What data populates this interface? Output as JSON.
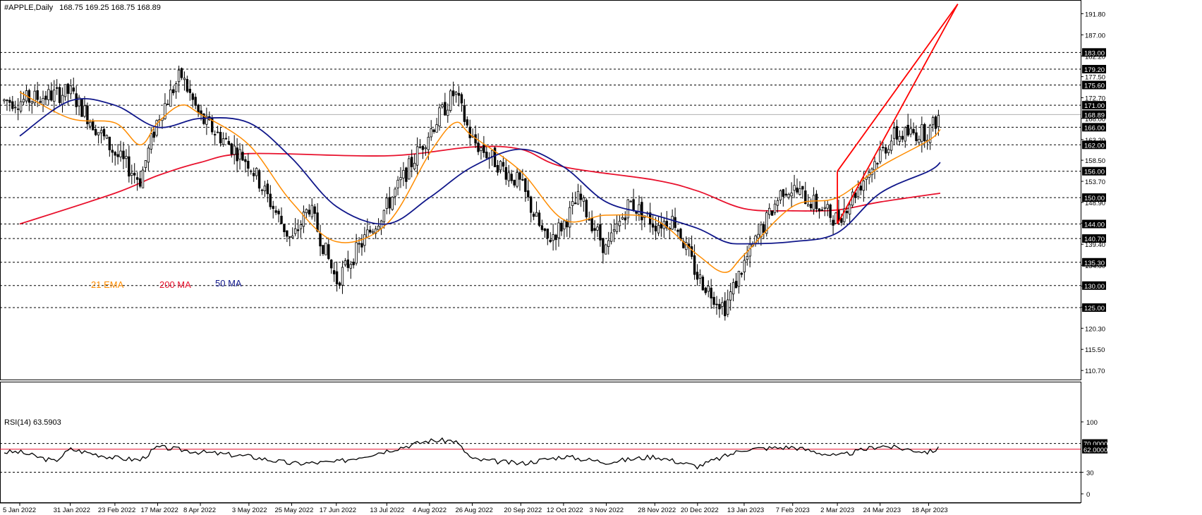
{
  "header": {
    "symbol_label": "#APPLE,Daily",
    "ohlc": "168.75 169.25 168.75 168.89"
  },
  "legend": {
    "ema21": "21 EMA",
    "ma200": "200 MA",
    "ma50": "50 MA"
  },
  "rsi_panel": {
    "title": "RSI(14) 63.5903",
    "ticks": [
      "100",
      "70.0000",
      "62.0000",
      "30",
      "0"
    ]
  },
  "colors": {
    "ema21": "#ff8c00",
    "ma200": "#e8112d",
    "ma50": "#10178a",
    "channel": "#ff0000",
    "candle": "#000000",
    "label_bg": "#000000",
    "label_fg": "#ffffff"
  },
  "chart_data": [
    {
      "type": "candlestick",
      "title": "#APPLE,Daily",
      "ylim": [
        108.8,
        194.6
      ],
      "price_ticks": [
        "191.80",
        "187.00",
        "182.20",
        "177.50",
        "172.70",
        "168.00",
        "163.20",
        "158.50",
        "153.70",
        "148.90",
        "144.20",
        "139.40",
        "134.60",
        "129.90",
        "125.10",
        "120.30",
        "115.50",
        "110.70"
      ],
      "price_levels": [
        "183.00",
        "179.20",
        "175.60",
        "171.00",
        "166.00",
        "162.00",
        "156.00",
        "150.00",
        "144.00",
        "140.70",
        "135.30",
        "130.00",
        "125.00"
      ],
      "current_price": "168.89",
      "x_tick_labels": [
        "5 Jan 2022",
        "31 Jan 2022",
        "23 Feb 2022",
        "17 Mar 2022",
        "8 Apr 2022",
        "3 May 2022",
        "25 May 2022",
        "17 Jun 2022",
        "13 Jul 2022",
        "4 Aug 2022",
        "26 Aug 2022",
        "20 Sep 2022",
        "12 Oct 2022",
        "3 Nov 2022",
        "28 Nov 2022",
        "20 Dec 2022",
        "13 Jan 2023",
        "7 Feb 2023",
        "2 Mar 2023",
        "24 Mar 2023",
        "18 Apr 2023"
      ],
      "price_path": [
        [
          "5 Jan 2022",
          172
        ],
        [
          "31 Jan 2022",
          174
        ],
        [
          "23 Feb 2022",
          160
        ],
        [
          "8 Mar 2022",
          154
        ],
        [
          "17 Mar 2022",
          168
        ],
        [
          "29 Mar 2022",
          178
        ],
        [
          "8 Apr 2022",
          168
        ],
        [
          "3 May 2022",
          158
        ],
        [
          "25 May 2022",
          140
        ],
        [
          "3 Jun 2022",
          148
        ],
        [
          "17 Jun 2022",
          131
        ],
        [
          "13 Jul 2022",
          148
        ],
        [
          "4 Aug 2022",
          165
        ],
        [
          "17 Aug 2022",
          174
        ],
        [
          "26 Aug 2022",
          163
        ],
        [
          "20 Sep 2022",
          153
        ],
        [
          "3 Oct 2022",
          140
        ],
        [
          "12 Oct 2022",
          144
        ],
        [
          "20 Oct 2022",
          150
        ],
        [
          "3 Nov 2022",
          138
        ],
        [
          "15 Nov 2022",
          149
        ],
        [
          "28 Nov 2022",
          144
        ],
        [
          "8 Dec 2022",
          145
        ],
        [
          "20 Dec 2022",
          132
        ],
        [
          "3 Jan 2023",
          125
        ],
        [
          "13 Jan 2023",
          135
        ],
        [
          "2 Feb 2023",
          152
        ],
        [
          "7 Feb 2023",
          152
        ],
        [
          "2 Mar 2023",
          145
        ],
        [
          "24 Mar 2023",
          160
        ],
        [
          "31 Mar 2023",
          164
        ],
        [
          "18 Apr 2023",
          165
        ],
        [
          "24 Apr 2023",
          168.9
        ]
      ],
      "series": [
        {
          "name": "21 EMA",
          "values": [
            [
              "5 Jan 2022",
              174
            ],
            [
              "31 Jan 2022",
              168
            ],
            [
              "23 Feb 2022",
              167
            ],
            [
              "8 Mar 2022",
              162
            ],
            [
              "17 Mar 2022",
              167
            ],
            [
              "29 Mar 2022",
              171
            ],
            [
              "8 Apr 2022",
              169
            ],
            [
              "3 May 2022",
              162
            ],
            [
              "25 May 2022",
              149
            ],
            [
              "17 Jun 2022",
              140
            ],
            [
              "13 Jul 2022",
              144
            ],
            [
              "4 Aug 2022",
              160
            ],
            [
              "17 Aug 2022",
              167
            ],
            [
              "26 Aug 2022",
              164
            ],
            [
              "20 Sep 2022",
              156
            ],
            [
              "12 Oct 2022",
              145
            ],
            [
              "3 Nov 2022",
              146
            ],
            [
              "28 Nov 2022",
              145
            ],
            [
              "20 Dec 2022",
              137
            ],
            [
              "3 Jan 2023",
              133
            ],
            [
              "13 Jan 2023",
              137
            ],
            [
              "7 Feb 2023",
              148
            ],
            [
              "2 Mar 2023",
              150
            ],
            [
              "24 Mar 2023",
              157
            ],
            [
              "18 Apr 2023",
              163
            ],
            [
              "24 Apr 2023",
              165.5
            ]
          ]
        },
        {
          "name": "200 MA",
          "values": [
            [
              "5 Jan 2022",
              144
            ],
            [
              "23 Feb 2022",
              151
            ],
            [
              "17 Mar 2022",
              155
            ],
            [
              "8 Apr 2022",
              158
            ],
            [
              "3 May 2022",
              160
            ],
            [
              "13 Jul 2022",
              159.5
            ],
            [
              "26 Aug 2022",
              161.5
            ],
            [
              "20 Sep 2022",
              161
            ],
            [
              "12 Oct 2022",
              157
            ],
            [
              "28 Nov 2022",
              154
            ],
            [
              "20 Dec 2022",
              151.5
            ],
            [
              "13 Jan 2023",
              147.5
            ],
            [
              "7 Feb 2023",
              147
            ],
            [
              "2 Mar 2023",
              147.2
            ],
            [
              "24 Mar 2023",
              149
            ],
            [
              "24 Apr 2023",
              151
            ]
          ]
        },
        {
          "name": "50 MA",
          "values": [
            [
              "5 Jan 2022",
              164
            ],
            [
              "31 Jan 2022",
              172
            ],
            [
              "23 Feb 2022",
              171
            ],
            [
              "17 Mar 2022",
              166
            ],
            [
              "8 Apr 2022",
              168
            ],
            [
              "3 May 2022",
              167
            ],
            [
              "25 May 2022",
              159
            ],
            [
              "17 Jun 2022",
              148
            ],
            [
              "13 Jul 2022",
              144
            ],
            [
              "4 Aug 2022",
              150
            ],
            [
              "26 Aug 2022",
              157
            ],
            [
              "20 Sep 2022",
              161
            ],
            [
              "12 Oct 2022",
              157
            ],
            [
              "3 Nov 2022",
              149
            ],
            [
              "28 Nov 2022",
              146
            ],
            [
              "20 Dec 2022",
              143
            ],
            [
              "3 Jan 2023",
              140
            ],
            [
              "13 Jan 2023",
              139.5
            ],
            [
              "7 Feb 2023",
              140
            ],
            [
              "2 Mar 2023",
              142
            ],
            [
              "24 Mar 2023",
              151
            ],
            [
              "18 Apr 2023",
              156
            ],
            [
              "24 Apr 2023",
              158
            ]
          ]
        }
      ],
      "channel": {
        "upper": [
          [
            "2 Mar 2023",
            156
          ],
          [
            "18 Apr 2023",
            176
          ],
          [
            "3 May 2023",
            194
          ]
        ],
        "lower": [
          [
            "2 Mar 2023",
            144
          ],
          [
            "18 Apr 2023",
            164
          ],
          [
            "3 May 2023",
            194
          ]
        ]
      }
    },
    {
      "type": "line",
      "title": "RSI(14) 63.5903",
      "ylim": [
        0,
        100
      ],
      "levels": [
        70,
        62,
        30
      ],
      "series": [
        {
          "name": "RSI(14)",
          "values": [
            [
              "5 Jan 2022",
              58
            ],
            [
              "23 Jan 2022",
              45
            ],
            [
              "31 Jan 2022",
              62
            ],
            [
              "23 Feb 2022",
              50
            ],
            [
              "8 Mar 2022",
              47
            ],
            [
              "17 Mar 2022",
              65
            ],
            [
              "8 Apr 2022",
              58
            ],
            [
              "3 May 2022",
              52
            ],
            [
              "25 May 2022",
              42
            ],
            [
              "17 Jun 2022",
              44
            ],
            [
              "13 Jul 2022",
              60
            ],
            [
              "4 Aug 2022",
              74
            ],
            [
              "17 Aug 2022",
              74
            ],
            [
              "26 Aug 2022",
              48
            ],
            [
              "20 Sep 2022",
              42
            ],
            [
              "12 Oct 2022",
              52
            ],
            [
              "3 Nov 2022",
              44
            ],
            [
              "28 Nov 2022",
              52
            ],
            [
              "20 Dec 2022",
              38
            ],
            [
              "13 Jan 2023",
              62
            ],
            [
              "7 Feb 2023",
              65
            ],
            [
              "2 Mar 2023",
              52
            ],
            [
              "24 Mar 2023",
              67
            ],
            [
              "18 Apr 2023",
              58
            ],
            [
              "24 Apr 2023",
              63.6
            ]
          ]
        }
      ]
    }
  ]
}
